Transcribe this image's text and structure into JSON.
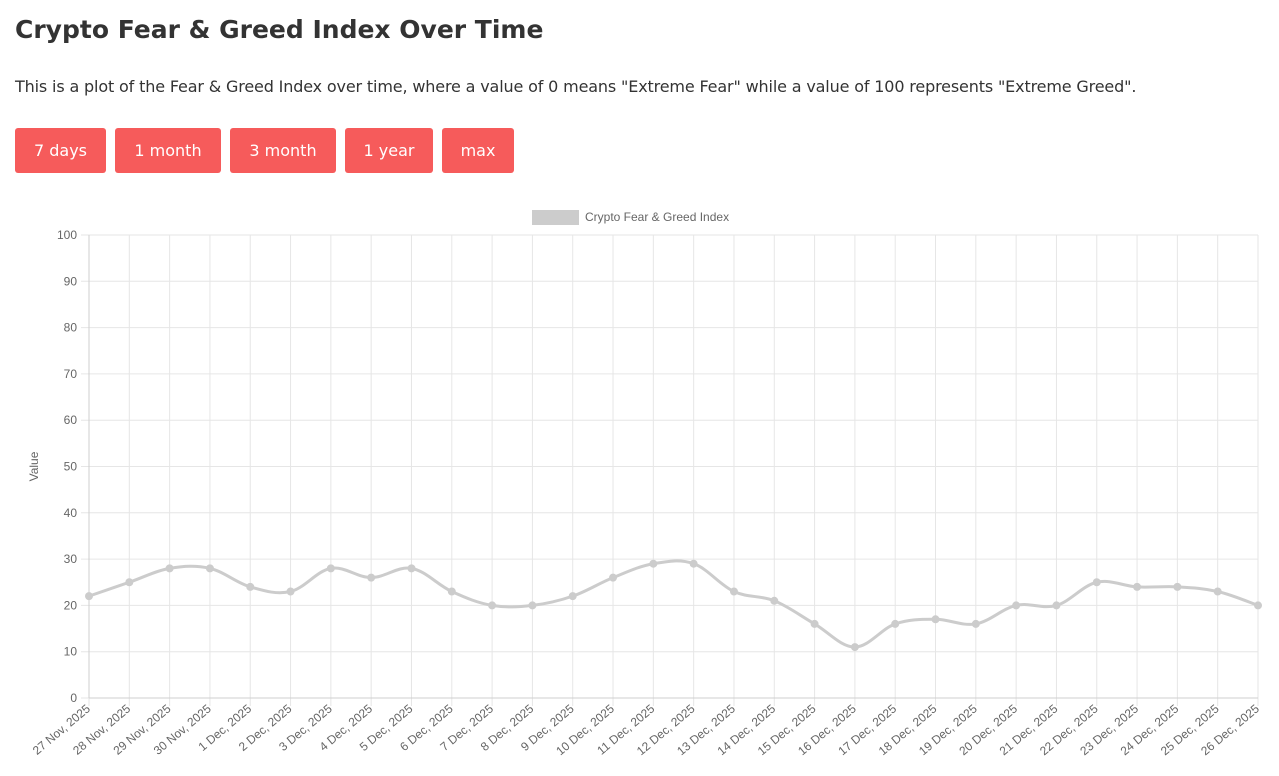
{
  "page": {
    "title": "Crypto Fear & Greed Index Over Time",
    "description": "This is a plot of the Fear & Greed Index over time, where a value of 0 means \"Extreme Fear\" while a value of 100 represents \"Extreme Greed\"."
  },
  "range_buttons": [
    {
      "label": "7 days"
    },
    {
      "label": "1 month"
    },
    {
      "label": "3 month"
    },
    {
      "label": "1 year"
    },
    {
      "label": "max"
    }
  ],
  "colors": {
    "button_bg": "#f65b5b",
    "line": "#cccccc",
    "grid": "#e6e6e6",
    "axis_text": "#666666"
  },
  "chart_data": {
    "type": "line",
    "title": "",
    "xlabel": "",
    "ylabel": "Value",
    "ylim": [
      0,
      100
    ],
    "yticks": [
      0,
      10,
      20,
      30,
      40,
      50,
      60,
      70,
      80,
      90,
      100
    ],
    "legend": {
      "position": "top",
      "label": "Crypto Fear & Greed Index"
    },
    "grid": true,
    "categories": [
      "27 Nov, 2025",
      "28 Nov, 2025",
      "29 Nov, 2025",
      "30 Nov, 2025",
      "1 Dec, 2025",
      "2 Dec, 2025",
      "3 Dec, 2025",
      "4 Dec, 2025",
      "5 Dec, 2025",
      "6 Dec, 2025",
      "7 Dec, 2025",
      "8 Dec, 2025",
      "9 Dec, 2025",
      "10 Dec, 2025",
      "11 Dec, 2025",
      "12 Dec, 2025",
      "13 Dec, 2025",
      "14 Dec, 2025",
      "15 Dec, 2025",
      "16 Dec, 2025",
      "17 Dec, 2025",
      "18 Dec, 2025",
      "19 Dec, 2025",
      "20 Dec, 2025",
      "21 Dec, 2025",
      "22 Dec, 2025",
      "23 Dec, 2025",
      "24 Dec, 2025",
      "25 Dec, 2025",
      "26 Dec, 2025"
    ],
    "series": [
      {
        "name": "Crypto Fear & Greed Index",
        "values": [
          22,
          25,
          28,
          28,
          24,
          23,
          28,
          26,
          28,
          23,
          20,
          20,
          22,
          26,
          29,
          29,
          23,
          21,
          16,
          11,
          16,
          17,
          16,
          20,
          20,
          25,
          24,
          24,
          23,
          20
        ]
      }
    ]
  }
}
